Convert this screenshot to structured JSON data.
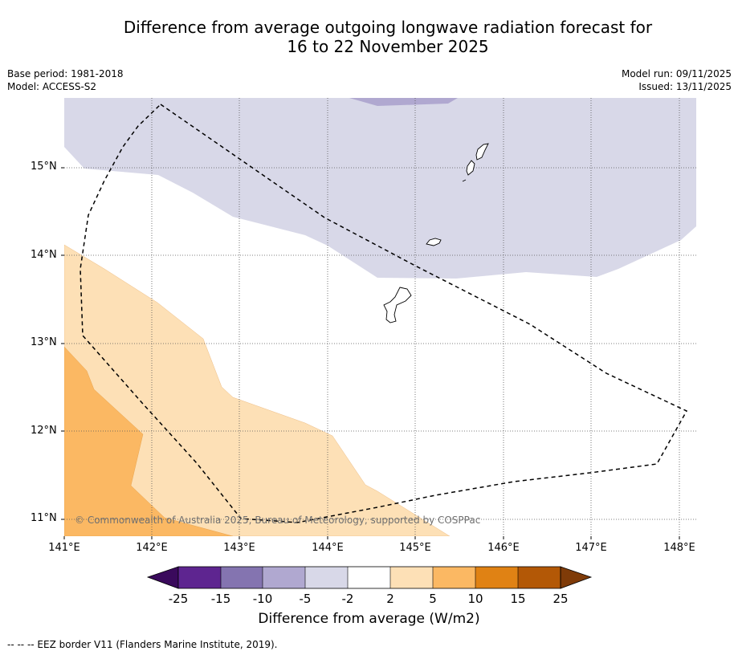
{
  "title": {
    "line1": "Difference from average outgoing longwave radiation forecast for",
    "line2": "16 to 22 November 2025"
  },
  "meta": {
    "base_period": "Base period: 1981-2018",
    "model": "Model: ACCESS-S2",
    "model_run": "Model run: 09/11/2025",
    "issued": "Issued: 13/11/2025"
  },
  "map": {
    "lat_labels": [
      "15°N",
      "14°N",
      "13°N",
      "12°N",
      "11°N"
    ],
    "lon_labels": [
      "141°E",
      "142°E",
      "143°E",
      "144°E",
      "145°E",
      "146°E",
      "147°E",
      "148°E"
    ],
    "copyright": "© Commonwealth of Australia 2025, Bureau of Meteorology, supported by COSPPac",
    "colors": {
      "neg_light": "#d8d8e8",
      "neg_mid": "#b0a8d0",
      "pos_light": "#fde0b6",
      "pos_mid": "#fbb863"
    }
  },
  "colorbar": {
    "title": "Difference from average (W/m2)",
    "ticks": [
      "-25",
      "-15",
      "-10",
      "-5",
      "-2",
      "2",
      "5",
      "10",
      "15",
      "25"
    ],
    "colors": [
      "#3a0a5c",
      "#5e2590",
      "#8474b0",
      "#b0a8d0",
      "#d8d8e8",
      "#ffffff",
      "#fde0b6",
      "#fbb863",
      "#e08214",
      "#b35806",
      "#7f3b08"
    ]
  },
  "footnote": "--  --  -- EEZ border V11 (Flanders Marine Institute, 2019)."
}
